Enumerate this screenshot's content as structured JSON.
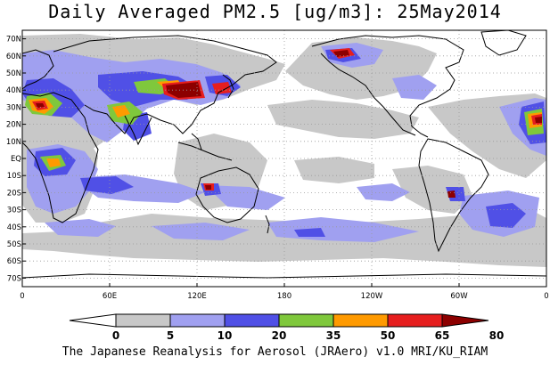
{
  "title": "Daily Averaged PM2.5 [ug/m3]: 25May2014",
  "footer": "The Japanese Reanalysis for Aerosol (JRAero) v1.0 MRI/KU_RIAM",
  "map": {
    "lat_labels": [
      "70N",
      "60N",
      "50N",
      "40N",
      "30N",
      "20N",
      "10N",
      "EQ",
      "10S",
      "20S",
      "30S",
      "40S",
      "50S",
      "60S",
      "70S"
    ],
    "lon_labels": [
      "0",
      "60E",
      "120E",
      "180",
      "120W",
      "60W",
      "0"
    ]
  },
  "legend": {
    "ticks": [
      "0",
      "5",
      "10",
      "20",
      "35",
      "50",
      "65",
      "80"
    ],
    "colors": [
      "#ffffff",
      "#c8c8c8",
      "#a0a0f0",
      "#5050e6",
      "#7fc83c",
      "#ff9a00",
      "#e61e1e",
      "#8c0000"
    ]
  }
}
